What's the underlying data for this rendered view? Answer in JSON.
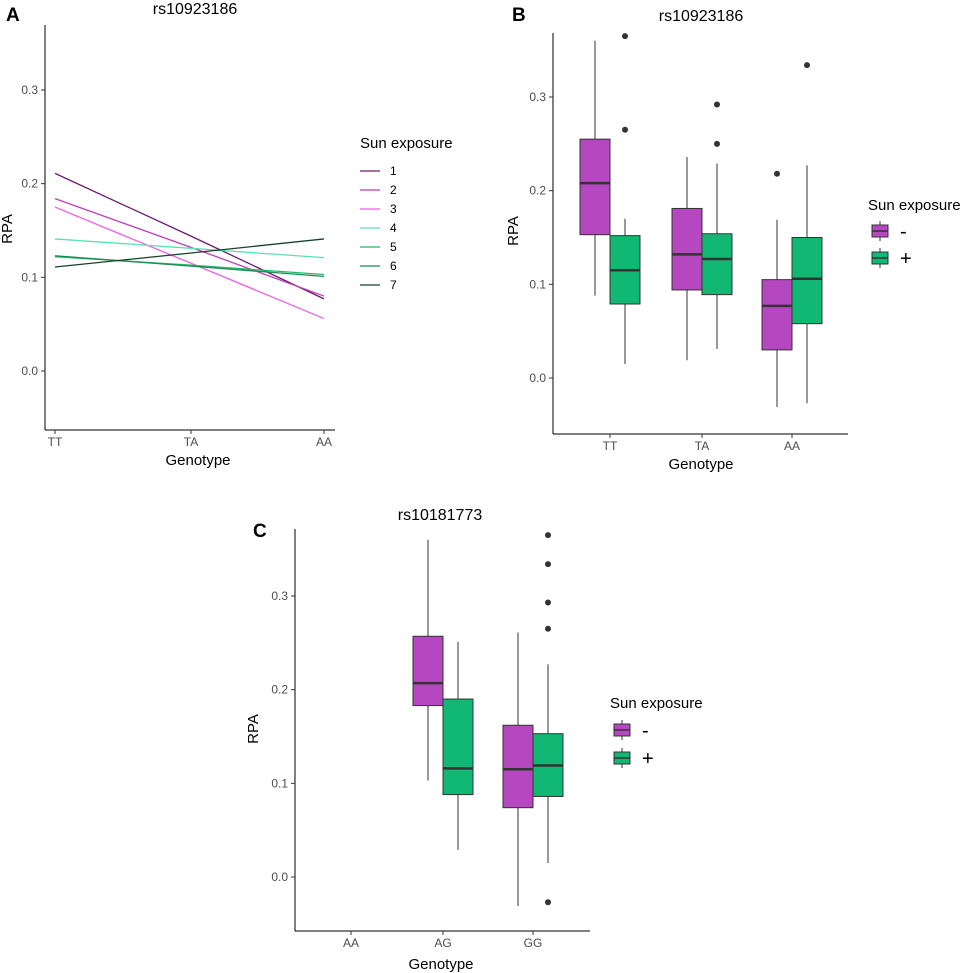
{
  "colors": {
    "minus": "#b547c0",
    "plus": "#11b873",
    "lines": [
      "#6a1b6e",
      "#c13cb4",
      "#ee5fe6",
      "#5de0b4",
      "#22b86a",
      "#218a52",
      "#19422d"
    ]
  },
  "chart_data": [
    {
      "id": "A",
      "panel_label": "A",
      "type": "line",
      "title": "rs10923186",
      "xlabel": "Genotype",
      "ylabel": "RPA",
      "categories": [
        "TT",
        "TA",
        "AA"
      ],
      "yticks": [
        0.0,
        0.1,
        0.2,
        0.3
      ],
      "ytick_labels": [
        "0.0",
        "0.1",
        "0.2",
        "0.3"
      ],
      "ylim": [
        -0.06,
        0.37
      ],
      "legend_title": "Sun exposure",
      "series": [
        {
          "name": "1",
          "values": [
            0.211,
            0.144,
            0.077
          ]
        },
        {
          "name": "2",
          "values": [
            0.184,
            0.132,
            0.08
          ]
        },
        {
          "name": "3",
          "values": [
            0.175,
            0.115,
            0.056
          ]
        },
        {
          "name": "4",
          "values": [
            0.141,
            0.131,
            0.121
          ]
        },
        {
          "name": "5",
          "values": [
            0.122,
            0.113,
            0.103
          ]
        },
        {
          "name": "6",
          "values": [
            0.123,
            0.112,
            0.101
          ]
        },
        {
          "name": "7",
          "values": [
            0.111,
            0.126,
            0.141
          ]
        }
      ]
    },
    {
      "id": "B",
      "panel_label": "B",
      "type": "boxplot",
      "title": "rs10923186",
      "xlabel": "Genotype",
      "ylabel": "RPA",
      "categories": [
        "TT",
        "TA",
        "AA"
      ],
      "yticks": [
        0.0,
        0.1,
        0.2,
        0.3
      ],
      "ytick_labels": [
        "0.0",
        "0.1",
        "0.2",
        "0.3"
      ],
      "ylim": [
        -0.06,
        0.37
      ],
      "legend_title": "Sun exposure",
      "groups": [
        "-",
        "+"
      ],
      "boxes": [
        {
          "category": "TT",
          "group": "-",
          "whisker_low": 0.088,
          "q1": 0.153,
          "median": 0.208,
          "q3": 0.255,
          "whisker_high": 0.36,
          "outliers": []
        },
        {
          "category": "TT",
          "group": "+",
          "whisker_low": 0.015,
          "q1": 0.079,
          "median": 0.115,
          "q3": 0.152,
          "whisker_high": 0.17,
          "outliers": [
            0.265,
            0.365
          ]
        },
        {
          "category": "TA",
          "group": "-",
          "whisker_low": 0.019,
          "q1": 0.094,
          "median": 0.132,
          "q3": 0.181,
          "whisker_high": 0.236,
          "outliers": []
        },
        {
          "category": "TA",
          "group": "+",
          "whisker_low": 0.031,
          "q1": 0.089,
          "median": 0.127,
          "q3": 0.154,
          "whisker_high": 0.229,
          "outliers": [
            0.25,
            0.292
          ]
        },
        {
          "category": "AA",
          "group": "-",
          "whisker_low": -0.031,
          "q1": 0.03,
          "median": 0.077,
          "q3": 0.105,
          "whisker_high": 0.169,
          "outliers": [
            0.218
          ]
        },
        {
          "category": "AA",
          "group": "+",
          "whisker_low": -0.027,
          "q1": 0.058,
          "median": 0.106,
          "q3": 0.15,
          "whisker_high": 0.227,
          "outliers": [
            0.334
          ]
        }
      ]
    },
    {
      "id": "C",
      "panel_label": "C",
      "type": "boxplot",
      "title": "rs10181773",
      "xlabel": "Genotype",
      "ylabel": "RPA",
      "categories": [
        "AA",
        "AG",
        "GG"
      ],
      "yticks": [
        0.0,
        0.1,
        0.2,
        0.3
      ],
      "ytick_labels": [
        "0.0",
        "0.1",
        "0.2",
        "0.3"
      ],
      "ylim": [
        -0.06,
        0.37
      ],
      "legend_title": "Sun exposure",
      "groups": [
        "-",
        "+"
      ],
      "boxes": [
        {
          "category": "AG",
          "group": "-",
          "whisker_low": 0.103,
          "q1": 0.183,
          "median": 0.207,
          "q3": 0.257,
          "whisker_high": 0.36,
          "outliers": []
        },
        {
          "category": "AG",
          "group": "+",
          "whisker_low": 0.029,
          "q1": 0.088,
          "median": 0.116,
          "q3": 0.19,
          "whisker_high": 0.251,
          "outliers": []
        },
        {
          "category": "GG",
          "group": "-",
          "whisker_low": -0.031,
          "q1": 0.074,
          "median": 0.115,
          "q3": 0.162,
          "whisker_high": 0.261,
          "outliers": []
        },
        {
          "category": "GG",
          "group": "+",
          "whisker_low": 0.015,
          "q1": 0.086,
          "median": 0.119,
          "q3": 0.153,
          "whisker_high": 0.227,
          "outliers": [
            -0.027,
            0.265,
            0.293,
            0.334,
            0.365
          ]
        }
      ]
    }
  ]
}
